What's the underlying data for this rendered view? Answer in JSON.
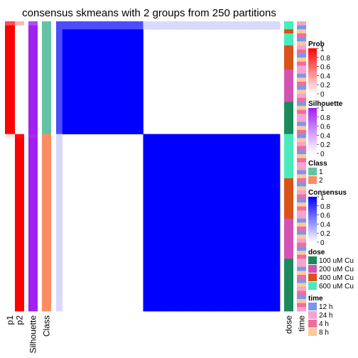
{
  "chart_data": {
    "type": "heatmap",
    "title": "consensus skmeans with 2 groups from 250 partitions",
    "n_samples": 72,
    "group_sizes": [
      28,
      44
    ],
    "consensus_matrix": {
      "description": "block-diagonal consensus heatmap",
      "within_group_value": 1,
      "between_group_value": 0,
      "edge_samples_value": 0.7
    },
    "left_annotations": [
      {
        "label": "p1",
        "values_by_group": [
          1,
          0
        ],
        "first_sample_value": 0.7
      },
      {
        "label": "p2",
        "values_by_group": [
          0,
          1
        ],
        "first_sample_value": 0.3
      },
      {
        "label": "Silhouette",
        "values_by_group": [
          1,
          1
        ],
        "first_sample_value": 0.8
      },
      {
        "label": "Class",
        "values_by_group": [
          "1",
          "2"
        ]
      }
    ],
    "right_annotations": [
      {
        "label": "dose"
      },
      {
        "label": "time"
      }
    ],
    "legends": [
      {
        "title": "Prob",
        "type": "continuous",
        "ticks": [
          "1",
          "0.8",
          "0.6",
          "0.4",
          "0.2",
          "0"
        ],
        "colors": [
          "#ff0000",
          "#ffffff"
        ]
      },
      {
        "title": "Silhouette",
        "type": "continuous",
        "ticks": [
          "1",
          "0.8",
          "0.6",
          "0.4",
          "0.2",
          "0"
        ],
        "colors": [
          "#a020f0",
          "#ffffff"
        ]
      },
      {
        "title": "Class",
        "type": "discrete",
        "items": [
          {
            "label": "1",
            "color": "#66c2a5"
          },
          {
            "label": "2",
            "color": "#fc8d62"
          }
        ]
      },
      {
        "title": "Consensus",
        "type": "continuous",
        "ticks": [
          "1",
          "0.8",
          "0.6",
          "0.4",
          "0.2",
          "0"
        ],
        "colors": [
          "#0000ff",
          "#ffffff"
        ]
      },
      {
        "title": "dose",
        "type": "discrete",
        "items": [
          {
            "label": "100 uM Cu",
            "color": "#1b8a5a"
          },
          {
            "label": "200 uM Cu",
            "color": "#d452b4"
          },
          {
            "label": "400 uM Cu",
            "color": "#d95219"
          },
          {
            "label": "600 uM Cu",
            "color": "#48ebbc"
          }
        ]
      },
      {
        "title": "time",
        "type": "discrete",
        "items": [
          {
            "label": "12 h",
            "color": "#7b97ed"
          },
          {
            "label": "24 h",
            "color": "#f5a3d0"
          },
          {
            "label": "4 h",
            "color": "#f06e9a"
          },
          {
            "label": "8 h",
            "color": "#fdc89b"
          }
        ]
      }
    ]
  }
}
